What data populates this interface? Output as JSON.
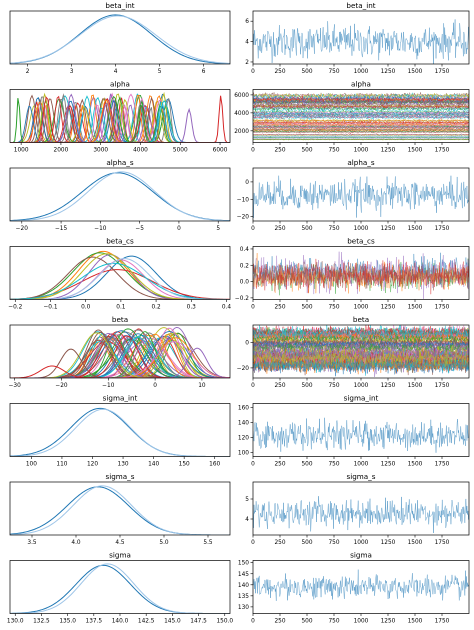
{
  "chart_data": [
    {
      "panel": "density",
      "title": "beta_int",
      "type": "line",
      "xlim": [
        1.6,
        6.6
      ],
      "ylim": [
        0,
        1.08
      ],
      "xticks": [
        2,
        3,
        4,
        5,
        6
      ],
      "xticklabels": [
        "2",
        "3",
        "4",
        "5",
        "6"
      ],
      "density": {
        "mode": "gauss",
        "series": [
          {
            "mu": 4.0,
            "sd": 0.82,
            "amp": 1,
            "color": "#1f77b4"
          },
          {
            "mu": 4.05,
            "sd": 0.86,
            "amp": 0.98,
            "color": "#9ec5e8"
          }
        ]
      }
    },
    {
      "panel": "trace",
      "title": "beta_int",
      "type": "line",
      "xlim": [
        0,
        2000
      ],
      "ylim": [
        1.8,
        7
      ],
      "yticks": [
        2,
        4,
        6
      ],
      "yticklabels": [
        "2",
        "4",
        "6"
      ],
      "trace": {
        "mode": "noise",
        "series": [
          {
            "mean": 4.0,
            "sd": 0.8,
            "color": "#1f77b4"
          }
        ]
      }
    },
    {
      "panel": "density",
      "title": "alpha",
      "type": "line",
      "xlim": [
        720,
        6250
      ],
      "ylim": [
        0,
        1.12
      ],
      "xticks": [
        1000,
        2000,
        3000,
        4000,
        5000,
        6000
      ],
      "xticklabels": [
        "1000",
        "2000",
        "3000",
        "4000",
        "5000",
        "6000"
      ],
      "density": {
        "mode": "many",
        "count": 85,
        "range": [
          1200,
          4800
        ],
        "sd": [
          50,
          130
        ],
        "series": [
          {
            "mu": 930,
            "sd": 35,
            "amp": 1,
            "color": "#2ca02c"
          },
          {
            "mu": 5220,
            "sd": 70,
            "amp": 0.7,
            "color": "#9467bd"
          },
          {
            "mu": 6020,
            "sd": 45,
            "amp": 1,
            "color": "#d62728"
          }
        ]
      }
    },
    {
      "panel": "trace",
      "title": "alpha",
      "type": "line",
      "xlim": [
        0,
        2000
      ],
      "ylim": [
        700,
        6600
      ],
      "yticks": [
        2000,
        4000,
        6000
      ],
      "yticklabels": [
        "2000",
        "4000",
        "6000"
      ],
      "trace": {
        "mode": "band",
        "count": 85,
        "range": [
          1000,
          6000
        ],
        "sdfrac": 0.02
      }
    },
    {
      "panel": "density",
      "title": "alpha_s",
      "type": "line",
      "xlim": [
        -21.5,
        6.5
      ],
      "ylim": [
        0,
        1.1
      ],
      "xticks": [
        -20,
        -15,
        -10,
        -5,
        0,
        5
      ],
      "xticklabels": [
        "−20",
        "−15",
        "−10",
        "−5",
        "0",
        "5"
      ],
      "density": {
        "mode": "gauss",
        "series": [
          {
            "mu": -7.8,
            "sd": 4.5,
            "amp": 1,
            "color": "#1f77b4"
          },
          {
            "mu": -7.3,
            "sd": 4.2,
            "amp": 1.02,
            "color": "#9ec5e8"
          }
        ]
      }
    },
    {
      "panel": "trace",
      "title": "alpha_s",
      "type": "line",
      "xlim": [
        0,
        2000
      ],
      "ylim": [
        -22.5,
        8
      ],
      "yticks": [
        -20,
        -10,
        0
      ],
      "yticklabels": [
        "−20",
        "−10",
        "0"
      ],
      "trace": {
        "mode": "noise",
        "series": [
          {
            "mean": -7.5,
            "sd": 4.3,
            "color": "#1f77b4"
          }
        ]
      }
    },
    {
      "panel": "density",
      "title": "beta_cs",
      "type": "line",
      "xlim": [
        -0.215,
        0.41
      ],
      "ylim": [
        0,
        1.1
      ],
      "xticks": [
        -0.2,
        -0.1,
        0.0,
        0.1,
        0.2,
        0.3,
        0.4
      ],
      "xticklabels": [
        "−0.2",
        "−0.1",
        "0.0",
        "0.1",
        "0.2",
        "0.3",
        "0.4"
      ],
      "density": {
        "mode": "gauss",
        "series": [
          {
            "mu": 0.13,
            "sd": 0.07,
            "amp": 0.9,
            "color": "#1f77b4"
          },
          {
            "mu": 0.05,
            "sd": 0.07,
            "amp": 1,
            "color": "#ff7f0e"
          },
          {
            "mu": 0.04,
            "sd": 0.075,
            "amp": 0.97,
            "color": "#2ca02c"
          },
          {
            "mu": 0.09,
            "sd": 0.1,
            "amp": 0.62,
            "color": "#d62728"
          },
          {
            "mu": 0.07,
            "sd": 0.06,
            "amp": 0.93,
            "color": "#9467bd"
          },
          {
            "mu": 0.02,
            "sd": 0.07,
            "amp": 0.88,
            "color": "#8c564b"
          },
          {
            "mu": 0.1,
            "sd": 0.065,
            "amp": 0.82,
            "color": "#e377c2"
          },
          {
            "mu": 0.06,
            "sd": 0.07,
            "amp": 0.95,
            "color": "#bcbd22"
          },
          {
            "mu": 0.08,
            "sd": 0.09,
            "amp": 0.75,
            "color": "#17becf"
          },
          {
            "mu": 0.11,
            "sd": 0.07,
            "amp": 0.85,
            "color": "#9ec5e8"
          }
        ]
      }
    },
    {
      "panel": "trace",
      "title": "beta_cs",
      "type": "line",
      "xlim": [
        0,
        2000
      ],
      "ylim": [
        -0.22,
        0.43
      ],
      "yticks": [
        -0.2,
        0.0,
        0.2,
        0.4
      ],
      "yticklabels": [
        "−0.2",
        "0.0",
        "0.2",
        "0.4"
      ],
      "trace": {
        "mode": "noise",
        "series": [
          {
            "mean": 0.05,
            "sd": 0.07,
            "color": "#2ca02c"
          },
          {
            "mean": 0.13,
            "sd": 0.07,
            "color": "#1f77b4"
          },
          {
            "mean": 0.09,
            "sd": 0.1,
            "color": "#9467bd"
          },
          {
            "mean": 0.05,
            "sd": 0.07,
            "color": "#ff7f0e"
          },
          {
            "mean": 0.07,
            "sd": 0.07,
            "color": "#8c564b"
          },
          {
            "mean": 0.08,
            "sd": 0.08,
            "color": "#d62728"
          }
        ]
      }
    },
    {
      "panel": "density",
      "title": "beta",
      "type": "line",
      "xlim": [
        -31,
        16
      ],
      "ylim": [
        0,
        1.1
      ],
      "xticks": [
        -30,
        -20,
        -10,
        0,
        10
      ],
      "xticklabels": [
        "−30",
        "−20",
        "−10",
        "0",
        "10"
      ],
      "density": {
        "mode": "many",
        "count": 60,
        "range": [
          -14,
          5
        ],
        "sd": [
          2,
          4
        ],
        "series": [
          {
            "mu": -18,
            "sd": 2.2,
            "amp": 0.6,
            "color": "#8c564b"
          },
          {
            "mu": 9,
            "sd": 2,
            "amp": 0.62,
            "color": "#9467bd"
          },
          {
            "mu": -22,
            "sd": 2.5,
            "amp": 0.25,
            "color": "#d62728"
          }
        ]
      }
    },
    {
      "panel": "trace",
      "title": "beta",
      "type": "line",
      "xlim": [
        0,
        2000
      ],
      "ylim": [
        -28,
        14
      ],
      "yticks": [
        -20,
        0
      ],
      "yticklabels": [
        "−20",
        "0"
      ],
      "trace": {
        "mode": "band",
        "count": 60,
        "range": [
          -18,
          9
        ],
        "sdfrac": 0.09
      }
    },
    {
      "panel": "density",
      "title": "sigma_int",
      "type": "line",
      "xlim": [
        93,
        165
      ],
      "ylim": [
        0,
        1.1
      ],
      "xticks": [
        100,
        110,
        120,
        130,
        140,
        150,
        160
      ],
      "xticklabels": [
        "100",
        "110",
        "120",
        "130",
        "140",
        "150",
        "160"
      ],
      "density": {
        "mode": "gauss",
        "series": [
          {
            "mu": 122.5,
            "sd": 9.5,
            "amp": 1,
            "color": "#1f77b4"
          },
          {
            "mu": 123.5,
            "sd": 9,
            "amp": 0.98,
            "color": "#9ec5e8"
          }
        ]
      }
    },
    {
      "panel": "trace",
      "title": "sigma_int",
      "type": "line",
      "xlim": [
        0,
        2000
      ],
      "ylim": [
        95,
        165
      ],
      "yticks": [
        100,
        120,
        140,
        160
      ],
      "yticklabels": [
        "100",
        "120",
        "140",
        "160"
      ],
      "trace": {
        "mode": "noise",
        "series": [
          {
            "mean": 123,
            "sd": 9,
            "color": "#1f77b4"
          }
        ]
      }
    },
    {
      "panel": "density",
      "title": "sigma_s",
      "type": "line",
      "xlim": [
        3.25,
        5.75
      ],
      "ylim": [
        0,
        1.1
      ],
      "xticks": [
        3.5,
        4.0,
        4.5,
        5.0,
        5.5
      ],
      "xticklabels": [
        "3.5",
        "4.0",
        "4.5",
        "5.0",
        "5.5"
      ],
      "density": {
        "mode": "gauss",
        "series": [
          {
            "mu": 4.25,
            "sd": 0.35,
            "amp": 1,
            "color": "#1f77b4"
          },
          {
            "mu": 4.3,
            "sd": 0.33,
            "amp": 1.02,
            "color": "#9ec5e8"
          }
        ]
      }
    },
    {
      "panel": "trace",
      "title": "sigma_s",
      "type": "line",
      "xlim": [
        0,
        2000
      ],
      "ylim": [
        3.2,
        5.85
      ],
      "yticks": [
        4,
        5
      ],
      "yticklabels": [
        "4",
        "5"
      ],
      "trace": {
        "mode": "noise",
        "series": [
          {
            "mean": 4.3,
            "sd": 0.34,
            "color": "#1f77b4"
          }
        ]
      }
    },
    {
      "panel": "density",
      "title": "sigma",
      "type": "line",
      "xlim": [
        129.5,
        150.5
      ],
      "ylim": [
        0,
        1.1
      ],
      "xticks": [
        130,
        132.5,
        135,
        137.5,
        140,
        142.5,
        145,
        147.5,
        150
      ],
      "xticklabels": [
        "130.0",
        "132.5",
        "135.0",
        "137.5",
        "140.0",
        "142.5",
        "145.0",
        "147.5",
        "150.0"
      ],
      "density": {
        "mode": "gauss",
        "series": [
          {
            "mu": 138.4,
            "sd": 2.6,
            "amp": 1,
            "color": "#1f77b4"
          },
          {
            "mu": 138.8,
            "sd": 2.5,
            "amp": 1.03,
            "color": "#9ec5e8"
          }
        ]
      }
    },
    {
      "panel": "trace",
      "title": "sigma",
      "type": "line",
      "xlim": [
        0,
        2000
      ],
      "ylim": [
        127,
        151
      ],
      "yticks": [
        130,
        135,
        140,
        145,
        150
      ],
      "yticklabels": [
        "130",
        "135",
        "140",
        "145",
        "150"
      ],
      "trace": {
        "mode": "noise",
        "series": [
          {
            "mean": 139,
            "sd": 2.6,
            "color": "#1f77b4"
          }
        ]
      }
    }
  ],
  "trace_xticks": [
    0,
    250,
    500,
    750,
    1000,
    1250,
    1500,
    1750
  ],
  "trace_xticklabels": [
    "0",
    "250",
    "500",
    "750",
    "1000",
    "1250",
    "1500",
    "1750"
  ]
}
